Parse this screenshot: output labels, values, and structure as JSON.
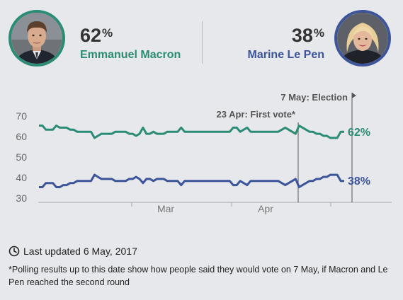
{
  "header": {
    "candidate_a": {
      "name": "Emmanuel Macron",
      "pct": "62",
      "pct_symbol": "%",
      "color": "#2a8c74",
      "avatar_icon": "macron-photo"
    },
    "candidate_b": {
      "name": "Marine Le Pen",
      "pct": "38",
      "pct_symbol": "%",
      "color": "#3b549a",
      "avatar_icon": "le-pen-photo"
    }
  },
  "chart_data": {
    "type": "line",
    "y_ticks": [
      "70",
      "60",
      "50",
      "40",
      "30"
    ],
    "ylim": [
      30,
      72
    ],
    "x_tick_labels": [
      "Mar",
      "Apr"
    ],
    "grid": false,
    "series": [
      {
        "name": "Emmanuel Macron",
        "color": "#2a8c74",
        "end_label": "62%",
        "values": [
          65,
          65,
          63,
          63,
          63,
          65,
          64,
          64,
          64,
          63,
          63,
          62,
          62,
          62,
          62,
          62,
          59,
          60,
          61,
          61,
          61,
          61,
          62,
          62,
          62,
          62,
          61,
          61,
          60,
          61,
          64,
          61,
          61,
          62,
          61,
          61,
          61,
          62,
          62,
          62,
          62,
          64,
          62,
          62,
          62,
          62,
          62,
          62,
          62,
          62,
          62,
          62,
          62,
          62,
          62,
          62,
          64,
          64,
          62,
          63,
          64,
          62,
          62,
          62,
          62,
          62,
          62,
          62,
          62,
          62,
          63,
          64,
          63,
          62,
          61,
          65,
          64,
          63,
          62,
          62,
          61,
          61,
          60,
          60,
          59,
          59,
          59,
          62,
          62
        ]
      },
      {
        "name": "Marine Le Pen",
        "color": "#3b549a",
        "end_label": "38%",
        "values": [
          35,
          35,
          37,
          37,
          37,
          35,
          35,
          36,
          36,
          37,
          37,
          38,
          38,
          38,
          38,
          38,
          41,
          40,
          39,
          39,
          39,
          39,
          38,
          38,
          38,
          38,
          39,
          39,
          40,
          39,
          37,
          39,
          39,
          38,
          39,
          39,
          39,
          38,
          38,
          38,
          38,
          36,
          38,
          38,
          38,
          38,
          38,
          38,
          38,
          38,
          38,
          38,
          38,
          38,
          38,
          38,
          36,
          36,
          38,
          37,
          36,
          38,
          38,
          38,
          38,
          38,
          38,
          38,
          38,
          38,
          37,
          36,
          37,
          38,
          39,
          35,
          36,
          37,
          38,
          38,
          39,
          39,
          40,
          40,
          41,
          41,
          41,
          38,
          38
        ]
      }
    ],
    "annotations": [
      {
        "label": "23 Apr: First vote*",
        "index": 75
      },
      {
        "label": "7 May: Election",
        "index": 89
      }
    ]
  },
  "footer": {
    "updated": "Last updated 6 May, 2017",
    "footnote": "*Polling results up to this date show how people said they would vote on 7 May, if Macron and Le Pen reached the second round",
    "clock_icon": "clock-icon"
  }
}
